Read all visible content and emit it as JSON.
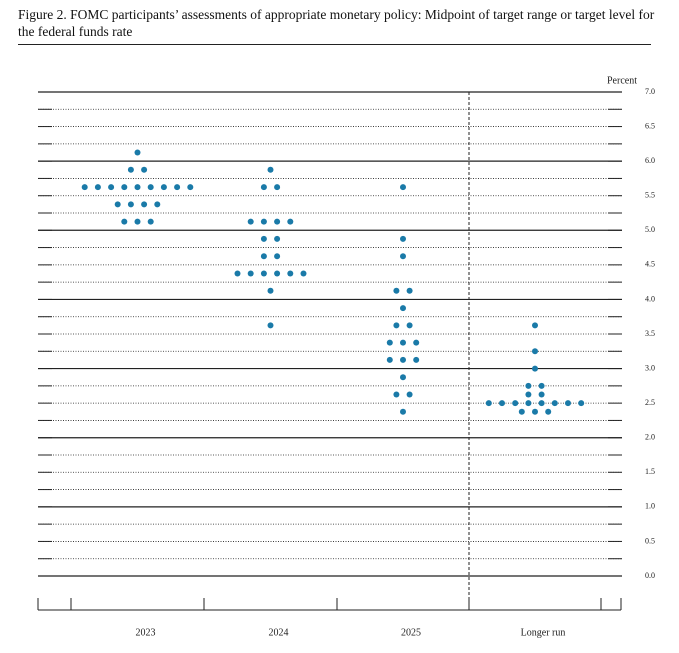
{
  "chart_data": {
    "type": "dot",
    "title": "Figure 2.  FOMC participants’ assessments of appropriate monetary policy: Midpoint of target range or target level for the federal funds rate",
    "y_label": "Percent",
    "categories": [
      "2023",
      "2024",
      "2025",
      "Longer run"
    ],
    "color": "#1a7aa8",
    "dots": [
      {
        "values": [
          6.125,
          5.875,
          5.625,
          5.375,
          5.125
        ],
        "counts": [
          1,
          2,
          9,
          4,
          3
        ]
      },
      {
        "values": [
          5.875,
          5.625,
          5.125,
          4.875,
          4.625,
          4.375,
          4.125,
          3.625
        ],
        "counts": [
          1,
          2,
          4,
          2,
          2,
          6,
          1,
          1
        ]
      },
      {
        "values": [
          5.625,
          4.875,
          4.625,
          4.125,
          3.875,
          3.625,
          3.375,
          3.125,
          2.875,
          2.625,
          2.375
        ],
        "counts": [
          1,
          1,
          1,
          2,
          1,
          2,
          3,
          3,
          1,
          2,
          1
        ]
      },
      {
        "values": [
          3.625,
          3.25,
          3.0,
          2.75,
          2.625,
          2.5,
          2.375
        ],
        "counts": [
          1,
          1,
          1,
          2,
          2,
          8,
          3
        ]
      }
    ],
    "ylim": [
      0,
      7
    ],
    "yticks": [
      {
        "value": 0,
        "label": "0.0"
      },
      0.5,
      {
        "value": 1,
        "label": "1.0"
      },
      1.5,
      {
        "value": 2,
        "label": "2.0"
      },
      2.5,
      {
        "value": 3,
        "label": "3.0"
      },
      3.5,
      {
        "value": 4,
        "label": "4.0"
      },
      4.5,
      {
        "value": 5,
        "label": "5.0"
      },
      5.5,
      {
        "value": 6,
        "label": "6.0"
      },
      6.5,
      {
        "value": 7,
        "label": "7.0"
      }
    ],
    "grid": true
  }
}
